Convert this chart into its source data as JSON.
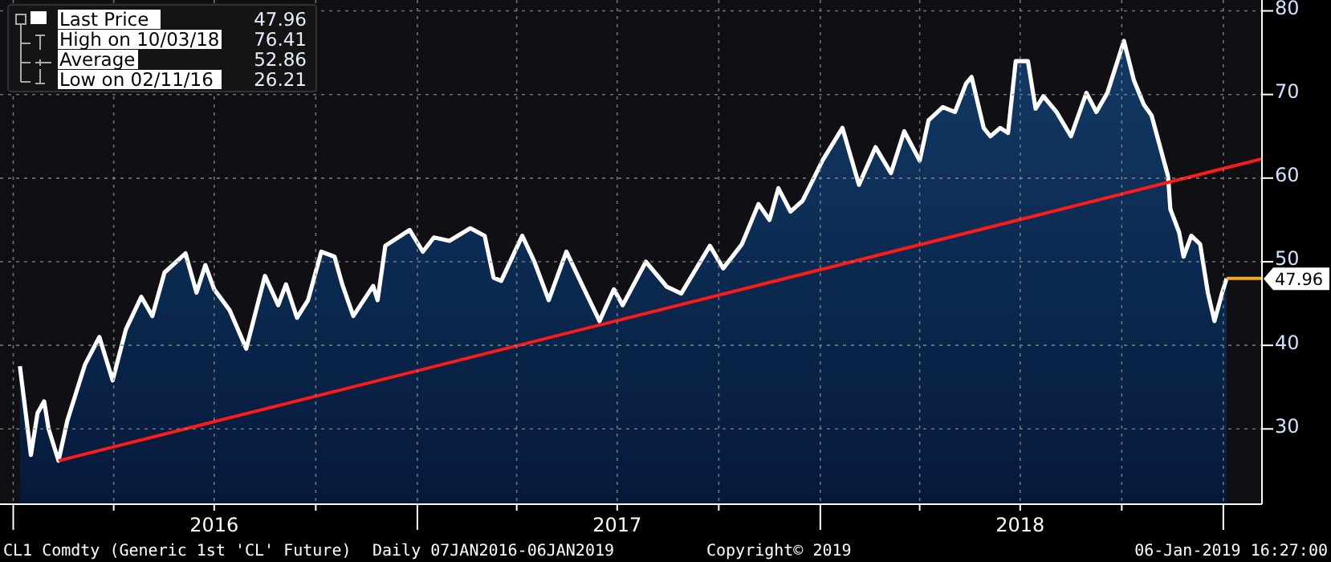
{
  "chart_data": {
    "type": "area",
    "xlim": [
      "2015-12-20",
      "2019-02-05"
    ],
    "ylim": [
      21,
      81.3
    ],
    "xticks": [
      {
        "value": "2016-01-01",
        "label": null
      },
      {
        "value": "2016-04-01",
        "label": null
      },
      {
        "value": "2016-07-01",
        "label": "2016"
      },
      {
        "value": "2016-10-01",
        "label": null
      },
      {
        "value": "2017-01-01",
        "label": null
      },
      {
        "value": "2017-04-01",
        "label": null
      },
      {
        "value": "2017-07-01",
        "label": "2017"
      },
      {
        "value": "2017-10-01",
        "label": null
      },
      {
        "value": "2018-01-01",
        "label": null
      },
      {
        "value": "2018-04-01",
        "label": null
      },
      {
        "value": "2018-07-01",
        "label": "2018"
      },
      {
        "value": "2018-10-01",
        "label": null
      },
      {
        "value": "2019-01-01",
        "label": null
      }
    ],
    "yticks": [
      30,
      40,
      50,
      60,
      70,
      80
    ],
    "grid": true,
    "legend": "top left",
    "series": [
      {
        "name": "Last Price",
        "color": "#ffffff",
        "x": [
          "2016-01-07",
          "2016-01-17",
          "2016-01-23",
          "2016-01-29",
          "2016-02-02",
          "2016-02-11",
          "2016-02-19",
          "2016-03-06",
          "2016-03-19",
          "2016-03-31",
          "2016-04-12",
          "2016-04-26",
          "2016-05-06",
          "2016-05-17",
          "2016-06-05",
          "2016-06-15",
          "2016-06-23",
          "2016-07-01",
          "2016-07-15",
          "2016-07-30",
          "2016-08-16",
          "2016-08-28",
          "2016-09-04",
          "2016-09-14",
          "2016-09-24",
          "2016-10-06",
          "2016-10-18",
          "2016-10-25",
          "2016-11-04",
          "2016-11-22",
          "2016-11-26",
          "2016-12-03",
          "2016-12-25",
          "2017-01-06",
          "2017-01-16",
          "2017-01-30",
          "2017-02-18",
          "2017-03-03",
          "2017-03-11",
          "2017-03-18",
          "2017-04-06",
          "2017-04-17",
          "2017-04-30",
          "2017-05-16",
          "2017-05-30",
          "2017-06-15",
          "2017-06-28",
          "2017-07-06",
          "2017-07-27",
          "2017-08-15",
          "2017-08-28",
          "2017-09-23",
          "2017-10-05",
          "2017-10-22",
          "2017-11-06",
          "2017-11-16",
          "2017-11-24",
          "2017-12-05",
          "2017-12-16",
          "2018-01-03",
          "2018-01-21",
          "2018-02-05",
          "2018-02-20",
          "2018-03-06",
          "2018-03-18",
          "2018-04-01",
          "2018-04-09",
          "2018-04-22",
          "2018-05-03",
          "2018-05-13",
          "2018-05-18",
          "2018-05-29",
          "2018-06-04",
          "2018-06-13",
          "2018-06-20",
          "2018-06-27",
          "2018-07-08",
          "2018-07-15",
          "2018-07-22",
          "2018-08-03",
          "2018-08-16",
          "2018-08-30",
          "2018-09-08",
          "2018-09-18",
          "2018-10-03",
          "2018-10-12",
          "2018-10-21",
          "2018-10-28",
          "2018-11-12",
          "2018-11-14",
          "2018-11-22",
          "2018-11-26",
          "2018-12-03",
          "2018-12-11",
          "2018-12-18",
          "2018-12-24",
          "2018-12-31",
          "2019-01-04"
        ],
        "values": [
          37.5,
          26.9,
          31.9,
          33.3,
          30.0,
          26.2,
          31.0,
          37.7,
          41.0,
          35.8,
          41.9,
          45.8,
          43.5,
          48.7,
          51.0,
          46.3,
          49.6,
          46.7,
          44.2,
          39.6,
          48.3,
          44.8,
          47.3,
          43.3,
          45.4,
          51.2,
          50.6,
          47.3,
          43.5,
          47.1,
          45.4,
          51.9,
          53.8,
          51.2,
          52.9,
          52.5,
          54.0,
          53.1,
          48.1,
          47.7,
          53.1,
          50.0,
          45.4,
          51.2,
          47.3,
          42.9,
          46.7,
          44.8,
          50.0,
          47.0,
          46.2,
          51.9,
          49.2,
          52.1,
          56.9,
          55.0,
          58.8,
          56.0,
          57.3,
          62.1,
          66.0,
          59.2,
          63.7,
          60.6,
          65.6,
          62.1,
          66.9,
          68.5,
          67.9,
          71.3,
          72.1,
          66.0,
          65.0,
          66.0,
          65.4,
          74.0,
          74.0,
          68.3,
          69.8,
          67.9,
          65.0,
          70.2,
          67.9,
          70.2,
          76.4,
          71.7,
          68.8,
          67.5,
          60.2,
          56.3,
          53.5,
          50.6,
          53.1,
          52.1,
          46.3,
          42.9,
          46.3,
          48.0
        ]
      },
      {
        "type": "line",
        "color": "#ff1a1a",
        "x": [
          "2016-02-11",
          "2019-02-05"
        ],
        "values": [
          26.2,
          62.3
        ]
      },
      {
        "type": "line",
        "color": "#f5a623",
        "x": [
          "2019-01-04",
          "2019-02-05"
        ],
        "values": [
          48.0,
          48.0
        ]
      }
    ],
    "annotations": [
      "47.96",
      "High on 10/03/18",
      "76.41",
      "Average",
      "52.86",
      "Low on 02/11/16",
      "26.21",
      "CL1 Comdty (Generic 1st 'CL' Future)",
      "Daily 07JAN2016-06JAN2019",
      "Copyright© 2019",
      "06-Jan-2019 16:27:00",
      {
        "text": "47.96",
        "x": "2019-02-05",
        "y": 47.96
      }
    ]
  }
}
